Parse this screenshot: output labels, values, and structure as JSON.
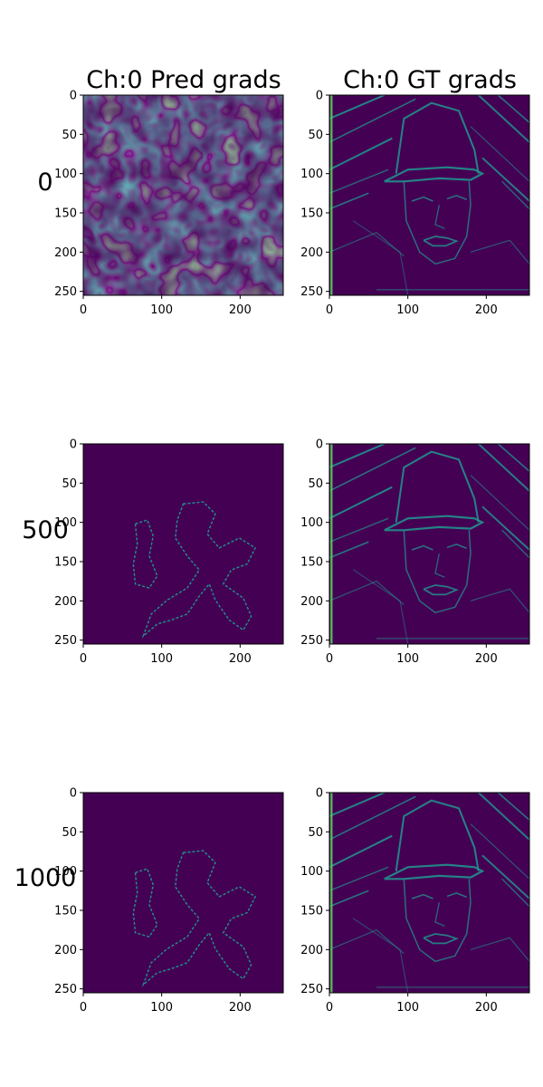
{
  "figure": {
    "column_titles": [
      "Ch:0 Pred grads",
      "Ch:0 GT grads"
    ],
    "row_labels": [
      "0",
      "500",
      "1000"
    ],
    "colormap": "viridis",
    "colors": {
      "background_dark": "#440154",
      "mid_teal": "#21918c",
      "bright_green": "#5ec962",
      "bright_yellow": "#fde725",
      "panel_base": "#440154"
    }
  },
  "chart_data": [
    {
      "type": "heatmap",
      "title": "Ch:0 Pred grads",
      "row_label": "0",
      "content": "turbulent noise gradient field",
      "x_ticks": [
        0,
        100,
        200
      ],
      "y_ticks": [
        0,
        50,
        100,
        150,
        200,
        250
      ],
      "xlim": [
        0,
        255
      ],
      "ylim": [
        255,
        0
      ]
    },
    {
      "type": "heatmap",
      "title": "Ch:0 GT grads",
      "row_label": "0",
      "content": "edge gradient image of face with hat",
      "x_ticks": [
        0,
        100,
        200
      ],
      "y_ticks": [
        0,
        50,
        100,
        150,
        200,
        250
      ],
      "xlim": [
        0,
        255
      ],
      "ylim": [
        255,
        0
      ]
    },
    {
      "type": "heatmap",
      "title": "",
      "row_label": "500",
      "content": "dark field with thin blob contours",
      "x_ticks": [
        0,
        100,
        200
      ],
      "y_ticks": [
        0,
        50,
        100,
        150,
        200,
        250
      ],
      "xlim": [
        0,
        255
      ],
      "ylim": [
        255,
        0
      ]
    },
    {
      "type": "heatmap",
      "title": "",
      "row_label": "500",
      "content": "edge gradient image of face with hat",
      "x_ticks": [
        0,
        100,
        200
      ],
      "y_ticks": [
        0,
        50,
        100,
        150,
        200,
        250
      ],
      "xlim": [
        0,
        255
      ],
      "ylim": [
        255,
        0
      ]
    },
    {
      "type": "heatmap",
      "title": "",
      "row_label": "1000",
      "content": "dark field with thin blob contours",
      "x_ticks": [
        0,
        100,
        200
      ],
      "y_ticks": [
        0,
        50,
        100,
        150,
        200,
        250
      ],
      "xlim": [
        0,
        255
      ],
      "ylim": [
        255,
        0
      ]
    },
    {
      "type": "heatmap",
      "title": "",
      "row_label": "1000",
      "content": "edge gradient image of face with hat",
      "x_ticks": [
        0,
        100,
        200
      ],
      "y_ticks": [
        0,
        50,
        100,
        150,
        200,
        250
      ],
      "xlim": [
        0,
        255
      ],
      "ylim": [
        255,
        0
      ]
    }
  ]
}
